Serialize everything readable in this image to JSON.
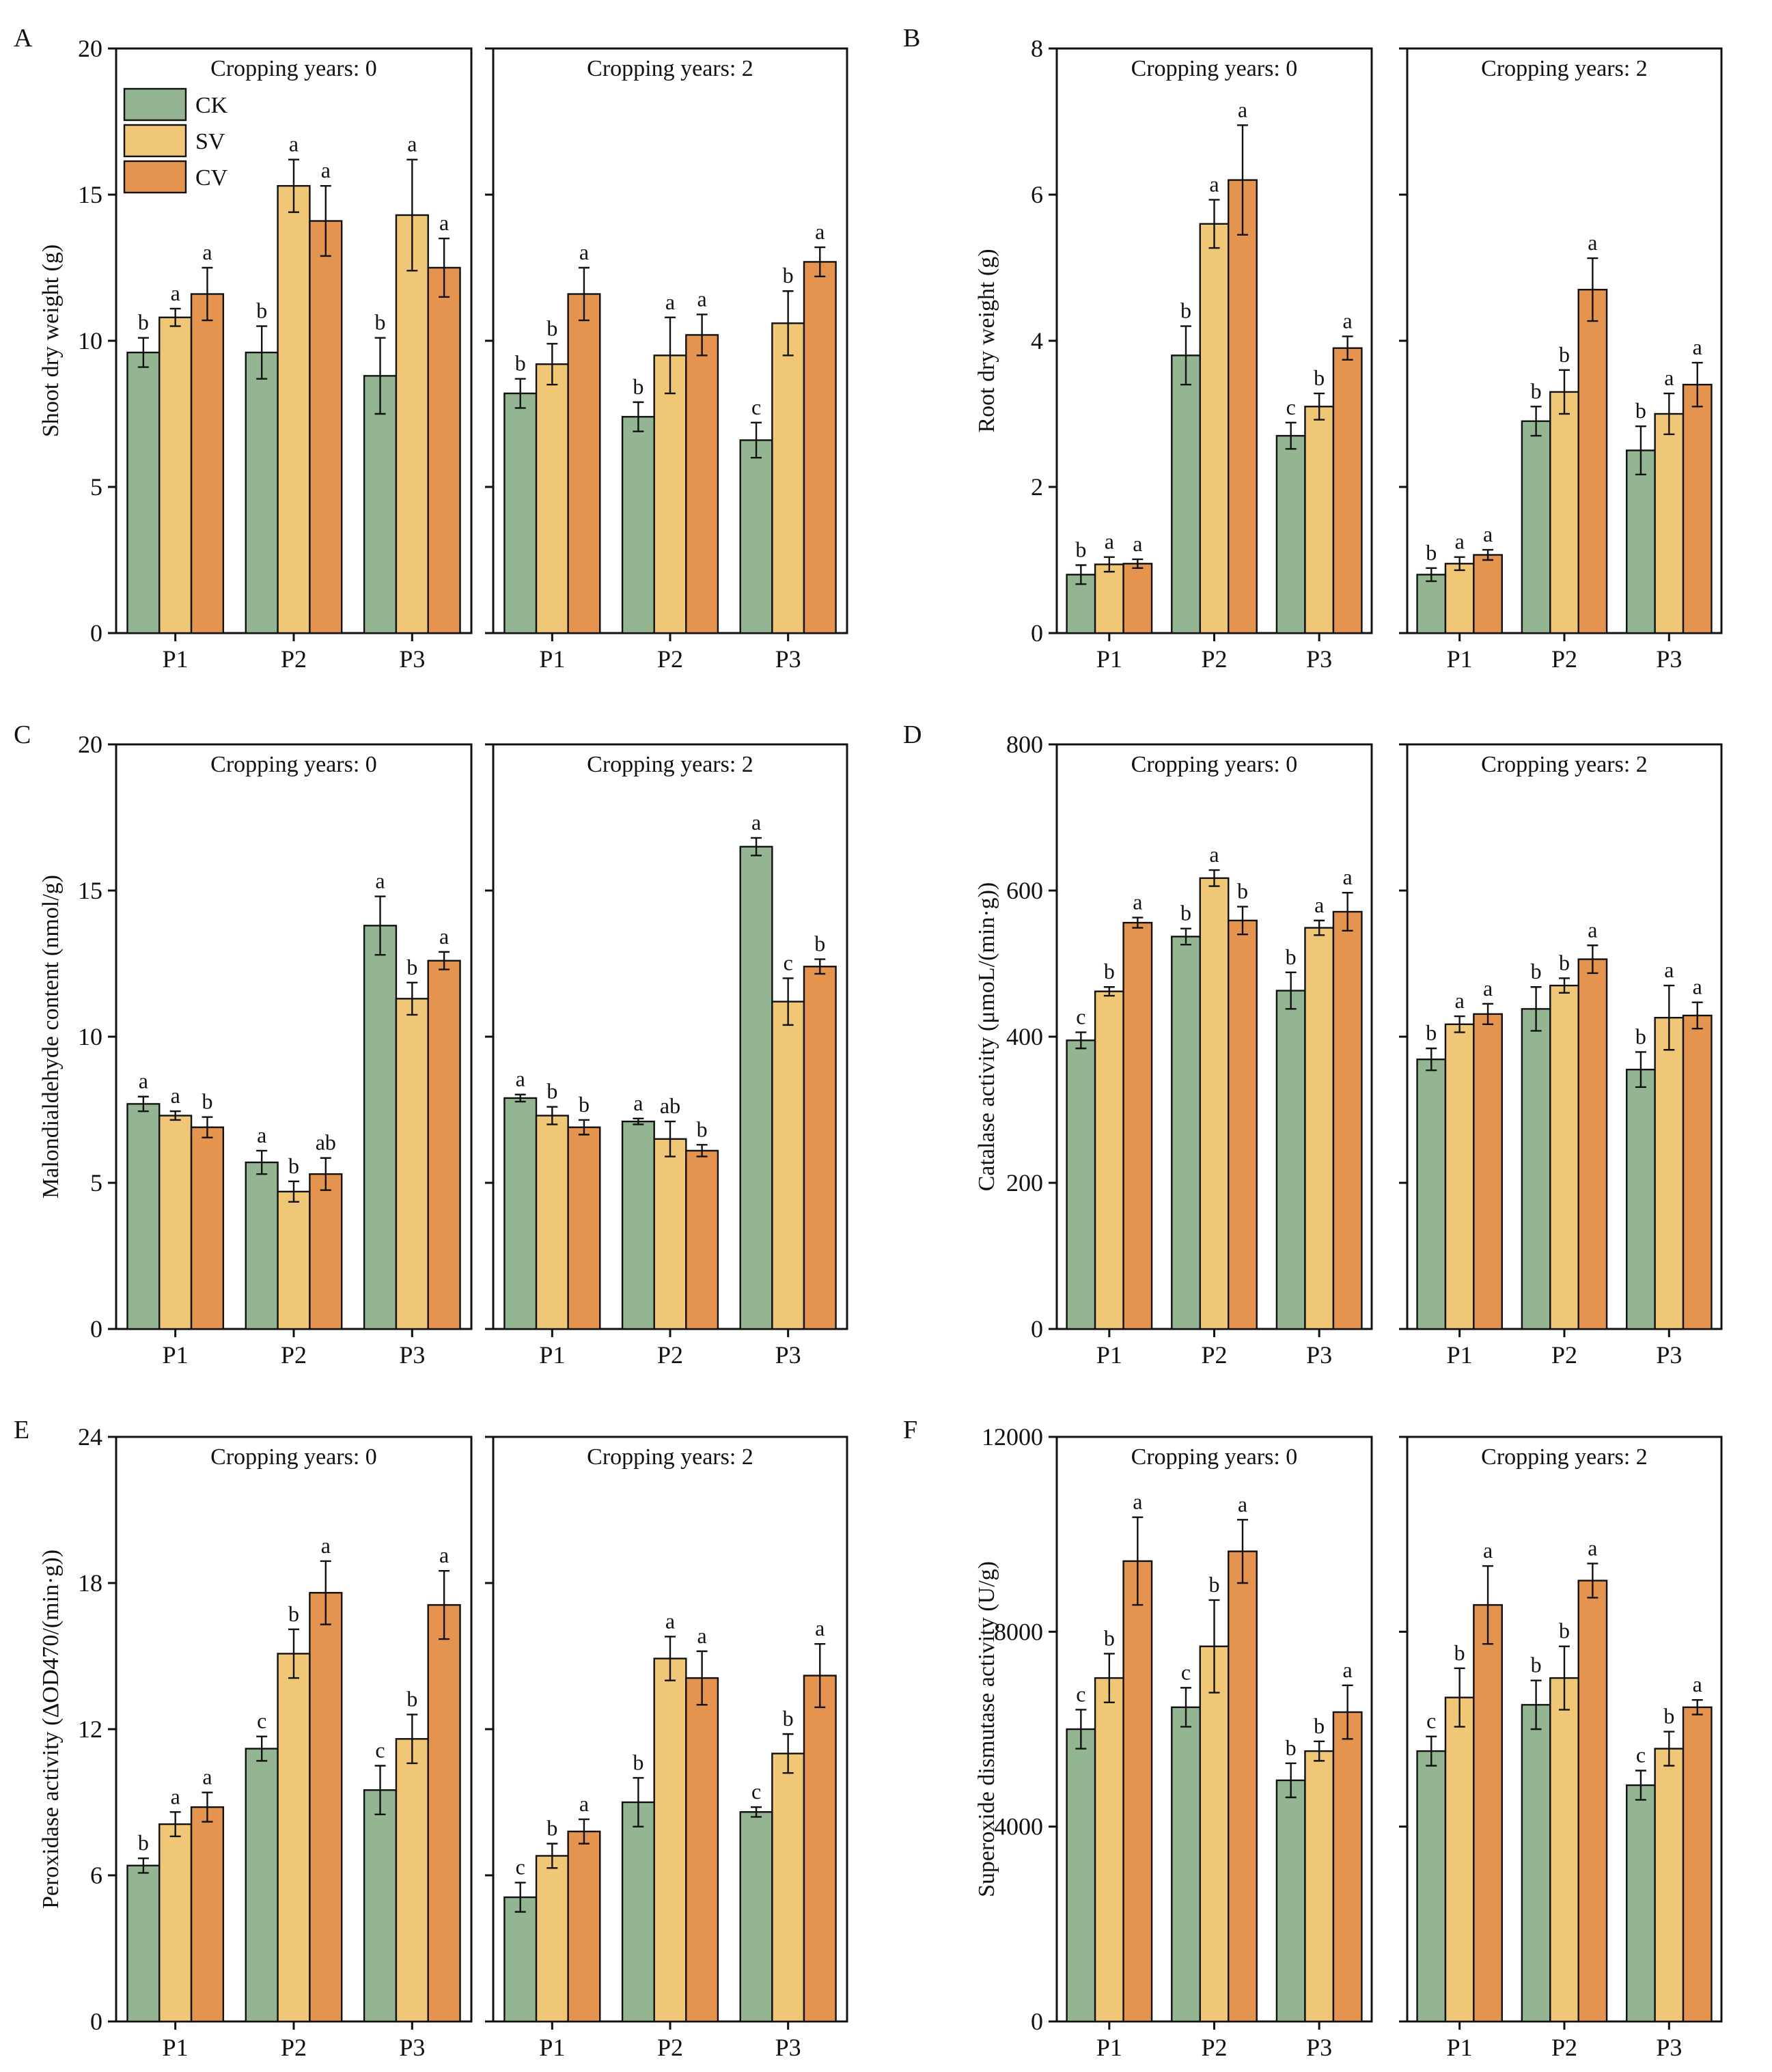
{
  "colors": {
    "CK": "#93b591",
    "SV": "#f0c776",
    "CV": "#e4944f"
  },
  "legend": [
    "CK",
    "SV",
    "CV"
  ],
  "chart_data": [
    {
      "letter": "A",
      "type": "bar",
      "ylabel": "Shoot dry weight (g)",
      "ylim": [
        0,
        20
      ],
      "yticks": [
        "0",
        "5",
        "10",
        "15",
        "20"
      ],
      "categories": [
        "P1",
        "P2",
        "P3"
      ],
      "panels": [
        {
          "title": "Cropping years: 0",
          "series": [
            {
              "name": "CK",
              "values": [
                9.6,
                9.6,
                8.8
              ],
              "errors": [
                0.5,
                0.9,
                1.3
              ],
              "labels": [
                "b",
                "b",
                "b"
              ]
            },
            {
              "name": "SV",
              "values": [
                10.8,
                15.3,
                14.3
              ],
              "errors": [
                0.3,
                0.9,
                1.9
              ],
              "labels": [
                "a",
                "a",
                "a"
              ]
            },
            {
              "name": "CV",
              "values": [
                11.6,
                14.1,
                12.5
              ],
              "errors": [
                0.9,
                1.2,
                1.0
              ],
              "labels": [
                "a",
                "a",
                "a"
              ]
            }
          ]
        },
        {
          "title": "Cropping years: 2",
          "series": [
            {
              "name": "CK",
              "values": [
                8.2,
                7.4,
                6.6
              ],
              "errors": [
                0.5,
                0.5,
                0.6
              ],
              "labels": [
                "b",
                "b",
                "c"
              ]
            },
            {
              "name": "SV",
              "values": [
                9.2,
                9.5,
                10.6
              ],
              "errors": [
                0.7,
                1.3,
                1.1
              ],
              "labels": [
                "b",
                "a",
                "b"
              ]
            },
            {
              "name": "CV",
              "values": [
                11.6,
                10.2,
                12.7
              ],
              "errors": [
                0.9,
                0.7,
                0.5
              ],
              "labels": [
                "a",
                "a",
                "a"
              ]
            }
          ]
        }
      ]
    },
    {
      "letter": "B",
      "type": "bar",
      "ylabel": "Root dry weight (g)",
      "ylim": [
        0,
        8
      ],
      "yticks": [
        "0",
        "2",
        "4",
        "6",
        "8"
      ],
      "categories": [
        "P1",
        "P2",
        "P3"
      ],
      "panels": [
        {
          "title": "Cropping years: 0",
          "series": [
            {
              "name": "CK",
              "values": [
                0.8,
                3.8,
                2.7
              ],
              "errors": [
                0.13,
                0.4,
                0.18
              ],
              "labels": [
                "b",
                "b",
                "c"
              ]
            },
            {
              "name": "SV",
              "values": [
                0.94,
                5.6,
                3.1
              ],
              "errors": [
                0.1,
                0.33,
                0.18
              ],
              "labels": [
                "a",
                "a",
                "b"
              ]
            },
            {
              "name": "CV",
              "values": [
                0.95,
                6.2,
                3.9
              ],
              "errors": [
                0.06,
                0.75,
                0.16
              ],
              "labels": [
                "a",
                "a",
                "a"
              ]
            }
          ]
        },
        {
          "title": "Cropping years: 2",
          "series": [
            {
              "name": "CK",
              "values": [
                0.8,
                2.9,
                2.5
              ],
              "errors": [
                0.09,
                0.2,
                0.33
              ],
              "labels": [
                "b",
                "b",
                "b"
              ]
            },
            {
              "name": "SV",
              "values": [
                0.95,
                3.3,
                3.0
              ],
              "errors": [
                0.09,
                0.3,
                0.28
              ],
              "labels": [
                "a",
                "b",
                "a"
              ]
            },
            {
              "name": "CV",
              "values": [
                1.07,
                4.7,
                3.4
              ],
              "errors": [
                0.07,
                0.43,
                0.3
              ],
              "labels": [
                "a",
                "a",
                "a"
              ]
            }
          ]
        }
      ]
    },
    {
      "letter": "C",
      "type": "bar",
      "ylabel": "Malondialdehyde content (nmol/g)",
      "ylim": [
        0,
        20
      ],
      "yticks": [
        "0",
        "5",
        "10",
        "15",
        "20"
      ],
      "categories": [
        "P1",
        "P2",
        "P3"
      ],
      "panels": [
        {
          "title": "Cropping years: 0",
          "series": [
            {
              "name": "CK",
              "values": [
                7.7,
                5.7,
                13.8
              ],
              "errors": [
                0.25,
                0.4,
                1.0
              ],
              "labels": [
                "a",
                "a",
                "a"
              ]
            },
            {
              "name": "SV",
              "values": [
                7.3,
                4.7,
                11.3
              ],
              "errors": [
                0.15,
                0.35,
                0.55
              ],
              "labels": [
                "a",
                "b",
                "b"
              ]
            },
            {
              "name": "CV",
              "values": [
                6.9,
                5.3,
                12.6
              ],
              "errors": [
                0.35,
                0.55,
                0.3
              ],
              "labels": [
                "b",
                "ab",
                "a"
              ]
            }
          ]
        },
        {
          "title": "Cropping years: 2",
          "series": [
            {
              "name": "CK",
              "values": [
                7.9,
                7.1,
                16.5
              ],
              "errors": [
                0.12,
                0.1,
                0.3
              ],
              "labels": [
                "a",
                "a",
                "a"
              ]
            },
            {
              "name": "SV",
              "values": [
                7.3,
                6.5,
                11.2
              ],
              "errors": [
                0.3,
                0.6,
                0.8
              ],
              "labels": [
                "b",
                "ab",
                "c"
              ]
            },
            {
              "name": "CV",
              "values": [
                6.9,
                6.1,
                12.4
              ],
              "errors": [
                0.25,
                0.2,
                0.25
              ],
              "labels": [
                "b",
                "b",
                "b"
              ]
            }
          ]
        }
      ]
    },
    {
      "letter": "D",
      "type": "bar",
      "ylabel": "Catalase activity (μmoL/(min·g))",
      "ylim": [
        0,
        800
      ],
      "yticks": [
        "0",
        "200",
        "400",
        "600",
        "800"
      ],
      "categories": [
        "P1",
        "P2",
        "P3"
      ],
      "panels": [
        {
          "title": "Cropping years: 0",
          "series": [
            {
              "name": "CK",
              "values": [
                395,
                537,
                463
              ],
              "errors": [
                11,
                11,
                25
              ],
              "labels": [
                "c",
                "b",
                "b"
              ]
            },
            {
              "name": "SV",
              "values": [
                462,
                617,
                549
              ],
              "errors": [
                6,
                11,
                10
              ],
              "labels": [
                "b",
                "a",
                "a"
              ]
            },
            {
              "name": "CV",
              "values": [
                556,
                559,
                571
              ],
              "errors": [
                7,
                19,
                26
              ],
              "labels": [
                "a",
                "b",
                "a"
              ]
            }
          ]
        },
        {
          "title": "Cropping years: 2",
          "series": [
            {
              "name": "CK",
              "values": [
                369,
                438,
                355
              ],
              "errors": [
                15,
                30,
                24
              ],
              "labels": [
                "b",
                "b",
                "b"
              ]
            },
            {
              "name": "SV",
              "values": [
                417,
                470,
                426
              ],
              "errors": [
                11,
                10,
                44
              ],
              "labels": [
                "a",
                "b",
                "a"
              ]
            },
            {
              "name": "CV",
              "values": [
                431,
                506,
                429
              ],
              "errors": [
                14,
                19,
                18
              ],
              "labels": [
                "a",
                "a",
                "a"
              ]
            }
          ]
        }
      ]
    },
    {
      "letter": "E",
      "type": "bar",
      "ylabel": "Peroxidase activity (ΔOD470/(min·g))",
      "ylim": [
        0,
        24
      ],
      "yticks": [
        "0",
        "6",
        "12",
        "18",
        "24"
      ],
      "categories": [
        "P1",
        "P2",
        "P3"
      ],
      "panels": [
        {
          "title": "Cropping years: 0",
          "series": [
            {
              "name": "CK",
              "values": [
                6.4,
                11.2,
                9.5
              ],
              "errors": [
                0.3,
                0.5,
                1.0
              ],
              "labels": [
                "b",
                "c",
                "c"
              ]
            },
            {
              "name": "SV",
              "values": [
                8.1,
                15.1,
                11.6
              ],
              "errors": [
                0.5,
                1.0,
                1.0
              ],
              "labels": [
                "a",
                "b",
                "b"
              ]
            },
            {
              "name": "CV",
              "values": [
                8.8,
                17.6,
                17.1
              ],
              "errors": [
                0.6,
                1.3,
                1.4
              ],
              "labels": [
                "a",
                "a",
                "a"
              ]
            }
          ]
        },
        {
          "title": "Cropping years: 2",
          "series": [
            {
              "name": "CK",
              "values": [
                5.1,
                9.0,
                8.6
              ],
              "errors": [
                0.6,
                1.0,
                0.2
              ],
              "labels": [
                "c",
                "b",
                "c"
              ]
            },
            {
              "name": "SV",
              "values": [
                6.8,
                14.9,
                11.0
              ],
              "errors": [
                0.5,
                0.9,
                0.8
              ],
              "labels": [
                "b",
                "a",
                "b"
              ]
            },
            {
              "name": "CV",
              "values": [
                7.8,
                14.1,
                14.2
              ],
              "errors": [
                0.5,
                1.1,
                1.3
              ],
              "labels": [
                "a",
                "a",
                "a"
              ]
            }
          ]
        }
      ]
    },
    {
      "letter": "F",
      "type": "bar",
      "ylabel": "Superoxide dismutase activity (U/g)",
      "ylim": [
        0,
        12000
      ],
      "yticks": [
        "0",
        "4000",
        "8000",
        "12000"
      ],
      "categories": [
        "P1",
        "P2",
        "P3"
      ],
      "panels": [
        {
          "title": "Cropping years: 0",
          "series": [
            {
              "name": "CK",
              "values": [
                6000,
                6450,
                4950
              ],
              "errors": [
                400,
                400,
                350
              ],
              "labels": [
                "c",
                "c",
                "b"
              ]
            },
            {
              "name": "SV",
              "values": [
                7050,
                7700,
                5550
              ],
              "errors": [
                500,
                950,
                200
              ],
              "labels": [
                "b",
                "b",
                "b"
              ]
            },
            {
              "name": "CV",
              "values": [
                9450,
                9650,
                6350
              ],
              "errors": [
                900,
                650,
                550
              ],
              "labels": [
                "a",
                "a",
                "a"
              ]
            }
          ]
        },
        {
          "title": "Cropping years: 2",
          "series": [
            {
              "name": "CK",
              "values": [
                5550,
                6500,
                4850
              ],
              "errors": [
                300,
                500,
                300
              ],
              "labels": [
                "c",
                "b",
                "c"
              ]
            },
            {
              "name": "SV",
              "values": [
                6650,
                7050,
                5600
              ],
              "errors": [
                600,
                650,
                350
              ],
              "labels": [
                "b",
                "b",
                "b"
              ]
            },
            {
              "name": "CV",
              "values": [
                8550,
                9050,
                6450
              ],
              "errors": [
                800,
                350,
                150
              ],
              "labels": [
                "a",
                "a",
                "a"
              ]
            }
          ]
        }
      ]
    }
  ]
}
